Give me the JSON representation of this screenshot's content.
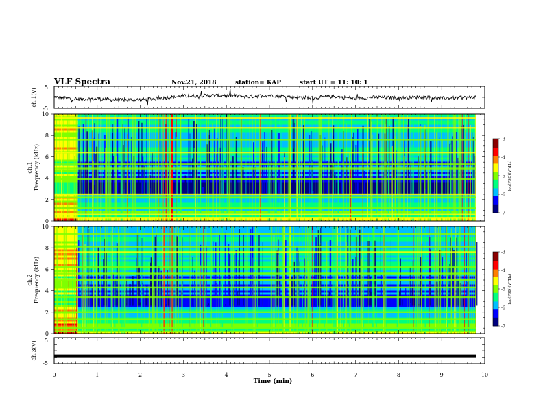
{
  "header": {
    "title": "VLF Spectra",
    "date": "Nov.21, 2018",
    "station": "station= KAP",
    "start": "start  UT =   11: 10: 1"
  },
  "chart_data": [
    {
      "type": "line",
      "panel": "ch1-waveform",
      "ylabel": "ch.1(V)",
      "ylim": [
        -5,
        5
      ],
      "yticks": [
        "5",
        "-5"
      ],
      "xlim": [
        0,
        10
      ],
      "series": [
        {
          "values_note_free": true,
          "x": [
            0,
            0.5,
            1,
            1.5,
            2,
            2.5,
            3,
            3.5,
            4,
            4.5,
            5,
            5.5,
            6,
            6.5,
            7,
            7.5,
            8,
            8.5,
            9,
            9.5,
            9.8
          ],
          "values": [
            0.2,
            -0.8,
            -0.6,
            -1.2,
            -1.0,
            -0.4,
            0.6,
            0.8,
            0.9,
            0.3,
            1.0,
            0.2,
            -0.2,
            0.4,
            -0.5,
            0.1,
            -0.3,
            0.2,
            -0.4,
            -0.1,
            0.1
          ]
        }
      ]
    },
    {
      "type": "heatmap",
      "panel": "ch1-spectrogram",
      "ylabel": "ch.1\nFrequency (kHz)",
      "ylim": [
        0,
        10
      ],
      "yticks": [
        "0",
        "2",
        "4",
        "6",
        "8",
        "10"
      ],
      "xlim": [
        0,
        10
      ],
      "colorbar": {
        "label": "log(PSD)(V²/Hz)",
        "range": [
          -7,
          -3
        ],
        "ticks": [
          "-3",
          "-4",
          "-5",
          "-6",
          "-7"
        ]
      }
    },
    {
      "type": "heatmap",
      "panel": "ch2-spectrogram",
      "ylabel": "ch.2\nFrequency (kHz)",
      "ylim": [
        0,
        10
      ],
      "yticks": [
        "0",
        "2",
        "4",
        "6",
        "8",
        "10"
      ],
      "xlim": [
        0,
        10
      ],
      "colorbar": {
        "label": "log(PSD)(V²/Hz)",
        "range": [
          -7,
          -3
        ],
        "ticks": [
          "-3",
          "-4",
          "-5",
          "-6",
          "-7"
        ]
      }
    },
    {
      "type": "line",
      "panel": "ch3-waveform",
      "ylabel": "ch.3(V)",
      "ylim": [
        -5,
        5
      ],
      "yticks": [
        "5",
        "-5"
      ],
      "xlim": [
        0,
        10
      ],
      "series": [
        {
          "x": [
            0,
            9.8
          ],
          "values": [
            -2,
            -2
          ]
        }
      ]
    }
  ],
  "xaxis": {
    "label": "Time (min)",
    "ticks": [
      "0",
      "1",
      "2",
      "3",
      "4",
      "5",
      "6",
      "7",
      "8",
      "9",
      "10"
    ]
  },
  "colors": {
    "axis": "#000000",
    "colormap": [
      "#00007f",
      "#0000ff",
      "#00bfff",
      "#00ff7f",
      "#7fff00",
      "#ffff00",
      "#ff7f00",
      "#ff0000",
      "#8b0000"
    ]
  }
}
